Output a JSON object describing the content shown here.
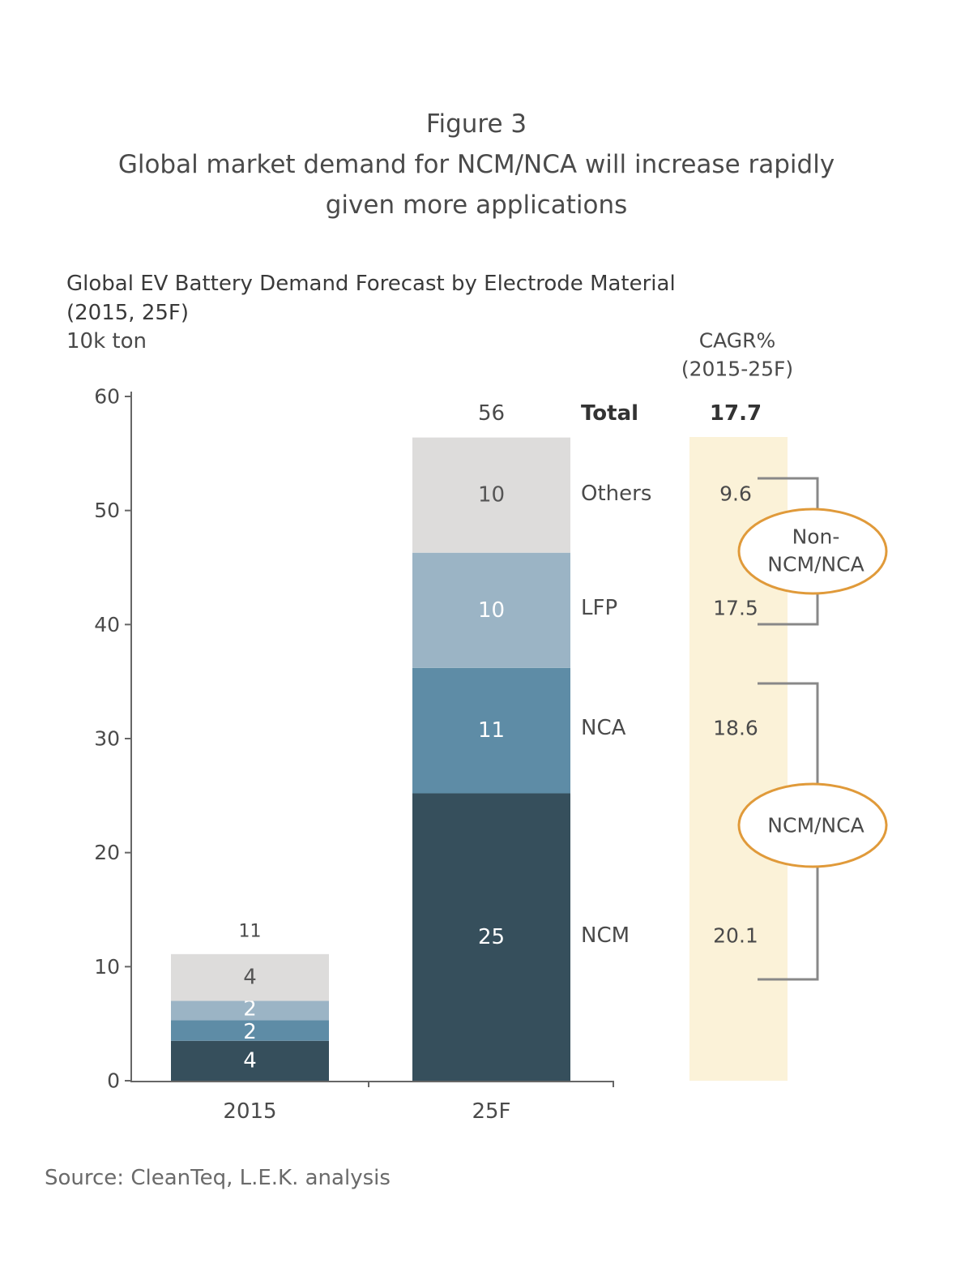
{
  "figure_label": "Figure 3",
  "headline": [
    "Global market demand for NCM/NCA will increase rapidly",
    "given more applications"
  ],
  "source": "Source: CleanTeq, L.E.K. analysis",
  "colors": {
    "NCM": "#364f5c",
    "NCA": "#5e8ca6",
    "LFP": "#9bb4c5",
    "Others": "#dddcdb",
    "cagr_band": "#fbf2d8",
    "highlight_ellipse": "#e09a3a",
    "axis": "#666666"
  },
  "chart_data": {
    "type": "bar",
    "stacked": true,
    "title": "Global EV Battery Demand Forecast by Electrode Material",
    "title_line2": "(2015, 25F)",
    "ylabel": "10k ton",
    "ylim": [
      0,
      60
    ],
    "yticks": [
      0,
      10,
      20,
      30,
      40,
      50,
      60
    ],
    "categories": [
      "2015",
      "25F"
    ],
    "series": [
      {
        "name": "NCM",
        "values": [
          3.5,
          25.2
        ],
        "labels": [
          "4",
          "25"
        ]
      },
      {
        "name": "NCA",
        "values": [
          1.8,
          11.0
        ],
        "labels": [
          "2",
          "11"
        ]
      },
      {
        "name": "LFP",
        "values": [
          1.7,
          10.1
        ],
        "labels": [
          "2",
          "10"
        ]
      },
      {
        "name": "Others",
        "values": [
          4.1,
          10.1
        ],
        "labels": [
          "4",
          "10"
        ]
      }
    ],
    "totals": [
      "11",
      "56"
    ],
    "total_label": "Total",
    "grid": false,
    "cagr": {
      "header": [
        "CAGR%",
        "(2015-25F)"
      ],
      "total": "17.7",
      "values": {
        "Others": "9.6",
        "LFP": "17.5",
        "NCA": "18.6",
        "NCM": "20.1"
      },
      "groups": [
        {
          "label": [
            "Non-",
            "NCM/NCA"
          ],
          "members": [
            "Others",
            "LFP"
          ]
        },
        {
          "label": [
            "NCM/NCA"
          ],
          "members": [
            "NCA",
            "NCM"
          ]
        }
      ]
    }
  }
}
